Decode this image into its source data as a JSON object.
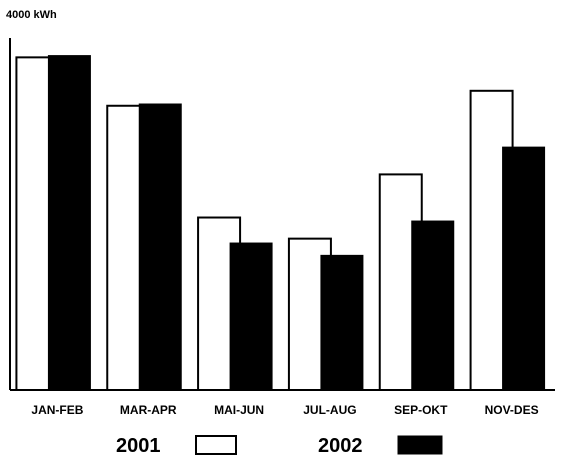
{
  "chart_data": {
    "type": "bar",
    "title": "",
    "xlabel": "",
    "ylabel": "4000 kWh",
    "ylim": [
      0,
      4000
    ],
    "categories": [
      "JAN-FEB",
      "MAR-APR",
      "MAI-JUN",
      "JUL-AUG",
      "SEP-OKT",
      "NOV-DES"
    ],
    "series": [
      {
        "name": "2001",
        "values": [
          3780,
          3230,
          1960,
          1720,
          2450,
          3400
        ],
        "fill": "#ffffff",
        "stroke": "#000000"
      },
      {
        "name": "2002",
        "values": [
          3800,
          3250,
          1670,
          1530,
          1920,
          2760
        ],
        "fill": "#000000",
        "stroke": "#000000"
      }
    ],
    "grid": false,
    "legend_position": "bottom"
  }
}
